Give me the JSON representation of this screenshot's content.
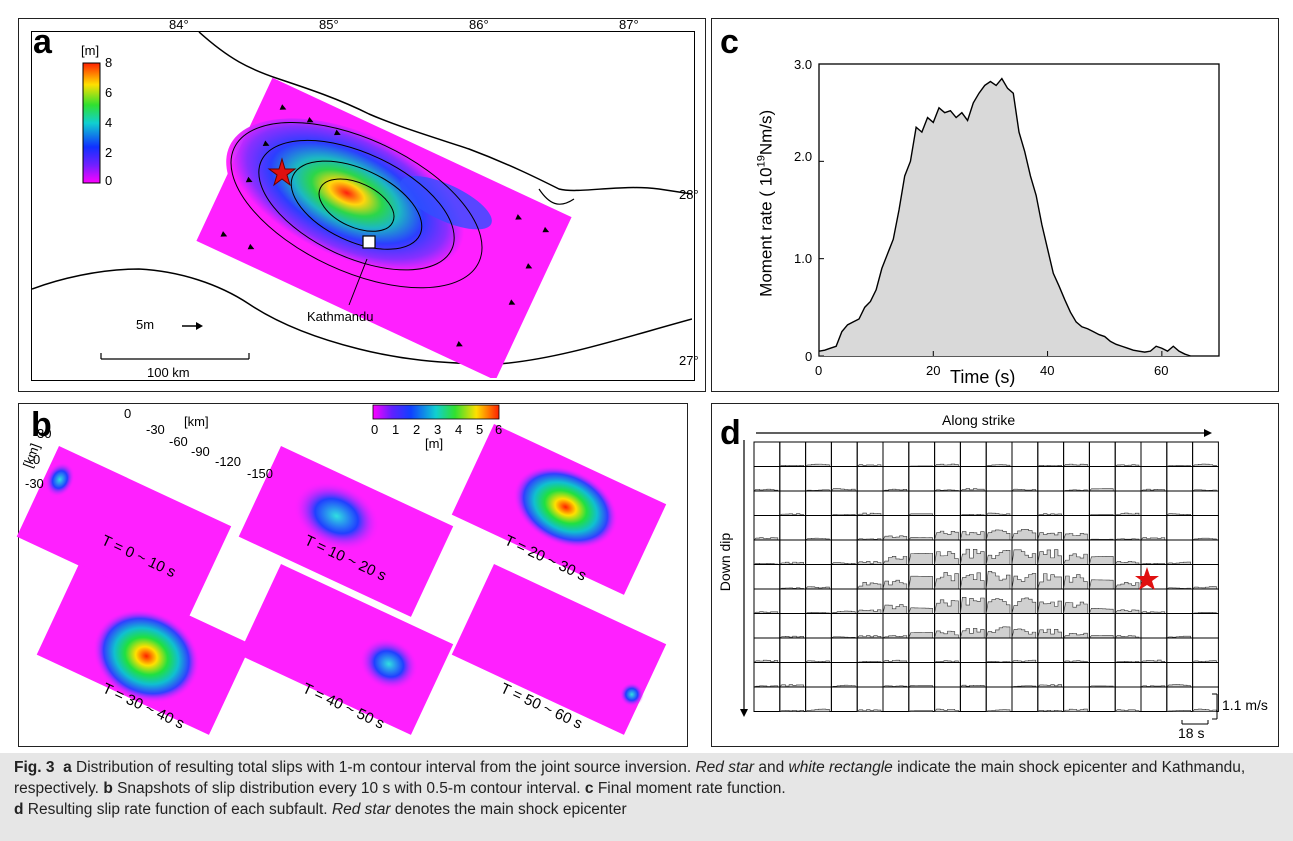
{
  "panel_a": {
    "label": "a",
    "lon_ticks": [
      "84°",
      "85°",
      "86°",
      "87°"
    ],
    "lat_ticks": [
      "28°",
      "27°"
    ],
    "colorbar_unit": "[m]",
    "colorbar_ticks": [
      "8",
      "6",
      "4",
      "2",
      "0"
    ],
    "arrow_label": "5m",
    "scale_label": "100 km",
    "city_label": "Kathmandu"
  },
  "panel_b": {
    "label": "b",
    "colorbar_ticks": [
      "0",
      "1",
      "2",
      "3",
      "4",
      "5",
      "6"
    ],
    "colorbar_unit": "[m]",
    "strike_axis_unit": "[km]",
    "strike_ticks": [
      "0",
      "-30",
      "-60",
      "-90",
      "-120",
      "-150"
    ],
    "dip_axis_unit": "[km]",
    "dip_ticks": [
      "30",
      "0",
      "-30"
    ],
    "snapshots": [
      "T = 0 ~ 10 s",
      "T = 10 ~ 20 s",
      "T = 20 ~ 30 s",
      "T = 30 ~ 40 s",
      "T = 40 ~ 50 s",
      "T = 50 ~ 60 s"
    ]
  },
  "panel_c": {
    "label": "c",
    "ylabel_pre": "Moment rate ( 10",
    "ylabel_sup": "19",
    "ylabel_post": "Nm/s)",
    "xlabel": "Time (s)",
    "y_ticks": [
      "0",
      "1.0",
      "2.0",
      "3.0"
    ],
    "x_ticks": [
      "0",
      "20",
      "40",
      "60"
    ]
  },
  "chart_data": {
    "type": "area",
    "x": [
      0,
      1,
      2,
      3,
      4,
      5,
      6,
      7,
      8,
      9,
      10,
      11,
      12,
      13,
      14,
      15,
      16,
      17,
      18,
      19,
      20,
      21,
      22,
      23,
      24,
      25,
      26,
      27,
      28,
      29,
      30,
      31,
      32,
      33,
      34,
      35,
      36,
      37,
      38,
      39,
      40,
      41,
      42,
      43,
      44,
      45,
      46,
      47,
      48,
      49,
      50,
      51,
      52,
      53,
      54,
      55,
      56,
      57,
      58,
      59,
      60,
      61,
      62,
      63,
      64,
      65
    ],
    "y": [
      0.05,
      0.06,
      0.08,
      0.1,
      0.25,
      0.32,
      0.35,
      0.38,
      0.5,
      0.56,
      0.68,
      0.9,
      1.05,
      1.2,
      1.5,
      1.85,
      2.0,
      2.35,
      2.3,
      2.45,
      2.4,
      2.55,
      2.5,
      2.52,
      2.45,
      2.5,
      2.42,
      2.6,
      2.7,
      2.78,
      2.82,
      2.78,
      2.85,
      2.75,
      2.7,
      2.3,
      2.1,
      1.85,
      1.65,
      1.35,
      1.1,
      0.85,
      0.72,
      0.58,
      0.45,
      0.35,
      0.3,
      0.28,
      0.25,
      0.22,
      0.2,
      0.15,
      0.12,
      0.1,
      0.08,
      0.06,
      0.05,
      0.04,
      0.05,
      0.1,
      0.08,
      0.05,
      0.1,
      0.05,
      0.02,
      0.0
    ],
    "xlabel": "Time (s)",
    "ylabel": "Moment rate ( 10^19Nm/s)",
    "xlim": [
      0,
      70
    ],
    "ylim": [
      0,
      3.0
    ]
  },
  "panel_d": {
    "label": "d",
    "top_label": "Along strike",
    "side_label": "Down dip",
    "amp_scale": "1.1 m/s",
    "time_scale": "18 s"
  },
  "caption": {
    "fig": "Fig. 3",
    "a_letter": "a",
    "a_text1": " Distribution of resulting total slips with 1-m contour interval from the joint source inversion. ",
    "a_red": "Red star",
    "a_and": " and ",
    "a_white": "white rectangle",
    "a_text2": " indicate the main shock epicenter and Kathmandu, respectively. ",
    "b_letter": "b",
    "b_text": " Snapshots of slip distribution every 10 s with 0.5-m contour interval. ",
    "c_letter": "c",
    "c_text": " Final moment rate function.",
    "d_letter": "d",
    "d_text": " Resulting slip rate function of each subfault. ",
    "d_red": "Red star",
    "d_text2": " denotes the main shock epicenter"
  },
  "colors": {
    "slip_max": "#d7191c",
    "slip_zero": "#ff00ff",
    "area_fill": "#d9d9d9",
    "caption_bg": "#e6e6e6"
  }
}
